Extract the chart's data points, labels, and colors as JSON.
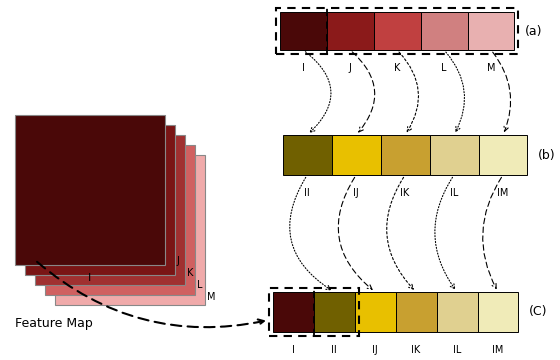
{
  "feature_map_colors": [
    "#f0aaaa",
    "#d06060",
    "#a03030",
    "#7a1515",
    "#4a0808"
  ],
  "row_a_colors": [
    "#4a0808",
    "#8b1a1a",
    "#c04040",
    "#d08080",
    "#e8b0b0"
  ],
  "row_b_colors": [
    "#706000",
    "#e8c000",
    "#c8a030",
    "#e0d090",
    "#f0ebb8"
  ],
  "row_c_colors": [
    "#4a0808",
    "#706000",
    "#e8c000",
    "#c8a030",
    "#e0d090",
    "#f0ebb8"
  ],
  "row_a_labels": [
    "I",
    "J",
    "K",
    "L",
    "M"
  ],
  "row_b_labels": [
    "II",
    "IJ",
    "IK",
    "IL",
    "IM"
  ],
  "row_c_labels": [
    "I",
    "II",
    "IJ",
    "IK",
    "IL",
    "IM"
  ],
  "label_a": "(a)",
  "label_b": "(b)",
  "label_c": "(C)",
  "feature_map_label": "Feature Map"
}
